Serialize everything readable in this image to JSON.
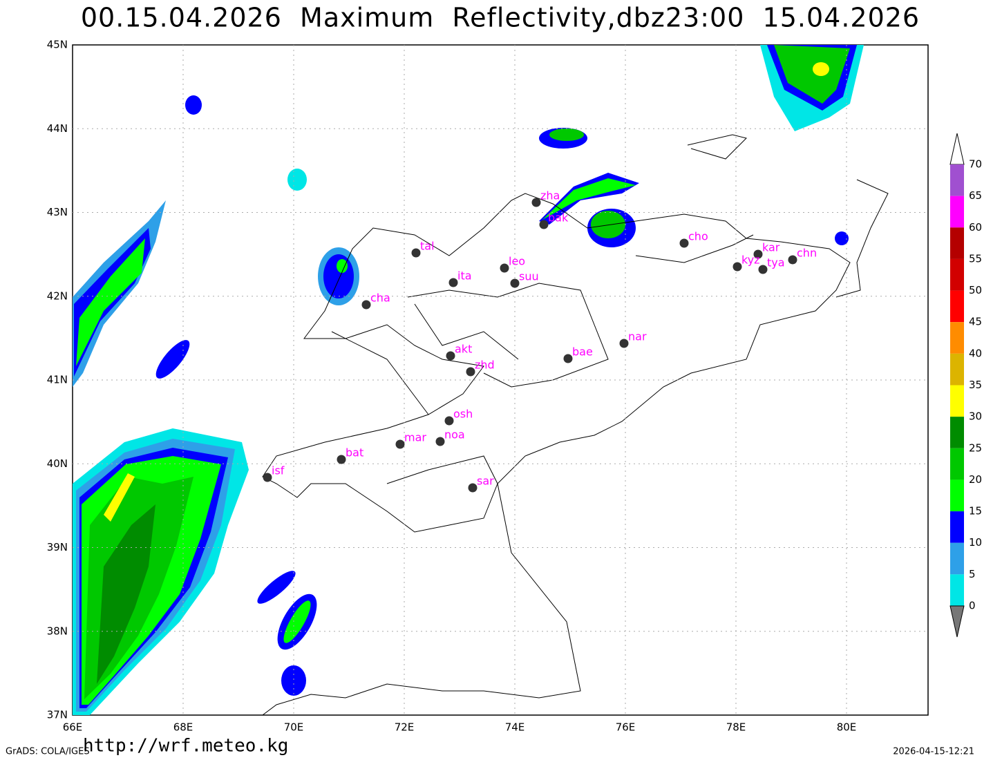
{
  "title": "00.15.04.2026  Maximum  Reflectivity,dbz23:00  15.04.2026",
  "map": {
    "lon_labels": [
      "66E",
      "68E",
      "70E",
      "72E",
      "74E",
      "76E",
      "78E",
      "80E"
    ],
    "lat_labels": [
      "45N",
      "44N",
      "43N",
      "42N",
      "41N",
      "40N",
      "39N",
      "38N",
      "37N"
    ],
    "stations": [
      "zha",
      "bak",
      "tal",
      "leo",
      "ita",
      "suu",
      "cha",
      "cho",
      "kar",
      "kyz",
      "tya",
      "chn",
      "nar",
      "bae",
      "akt",
      "zhd",
      "osh",
      "noa",
      "mar",
      "bat",
      "isf",
      "sar"
    ],
    "colorbar": {
      "labels": [
        70,
        65,
        60,
        55,
        50,
        45,
        40,
        35,
        30,
        25,
        20,
        15,
        10,
        5,
        0
      ]
    }
  },
  "footer": {
    "left": "GrADS: COLA/IGES",
    "url": "http://wrf.meteo.kg",
    "timestamp": "2026-04-15-12:21"
  }
}
